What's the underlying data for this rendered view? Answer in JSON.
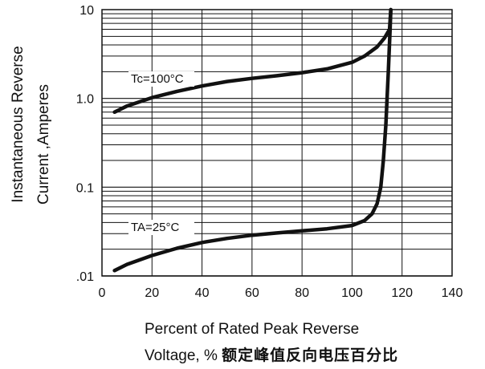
{
  "chart_data": {
    "type": "line",
    "y_scale": "log",
    "ylim": [
      0.01,
      10
    ],
    "xlim": [
      0,
      140
    ],
    "grid": true,
    "x_ticks": [
      "0",
      "20",
      "40",
      "60",
      "80",
      "100",
      "120",
      "140"
    ],
    "y_ticks": [
      {
        "value": 10,
        "label": "10"
      },
      {
        "value": 1,
        "label": "1.0"
      },
      {
        "value": 0.1,
        "label": "0.1"
      },
      {
        "value": 0.01,
        "label": ".01"
      }
    ],
    "ylabel_line1": "Instantaneous Reverse",
    "ylabel_line2": "Current ,Amperes",
    "xlabel_line1": "Percent of Rated Peak  Reverse",
    "xlabel_line2": "Voltage, %",
    "xlabel_cjk": "额定峰值反向电压百分比",
    "series": [
      {
        "annotation": "Tc=100°C",
        "x": [
          5,
          10,
          20,
          30,
          40,
          50,
          60,
          70,
          80,
          90,
          100,
          105,
          110,
          113,
          115,
          115.5
        ],
        "y": [
          0.7,
          0.82,
          1.02,
          1.2,
          1.38,
          1.55,
          1.68,
          1.8,
          1.95,
          2.15,
          2.55,
          3.0,
          3.8,
          4.8,
          6.0,
          10
        ]
      },
      {
        "annotation": "TA=25°C",
        "x": [
          5,
          10,
          20,
          30,
          40,
          50,
          60,
          70,
          80,
          90,
          100,
          105,
          108,
          110,
          111.5,
          112.5,
          113.5,
          114.5,
          115.2,
          115.5
        ],
        "y": [
          0.0115,
          0.0135,
          0.017,
          0.0205,
          0.0238,
          0.0265,
          0.0288,
          0.0305,
          0.0322,
          0.034,
          0.037,
          0.042,
          0.05,
          0.065,
          0.1,
          0.2,
          0.5,
          2.0,
          6.0,
          10
        ]
      }
    ]
  }
}
